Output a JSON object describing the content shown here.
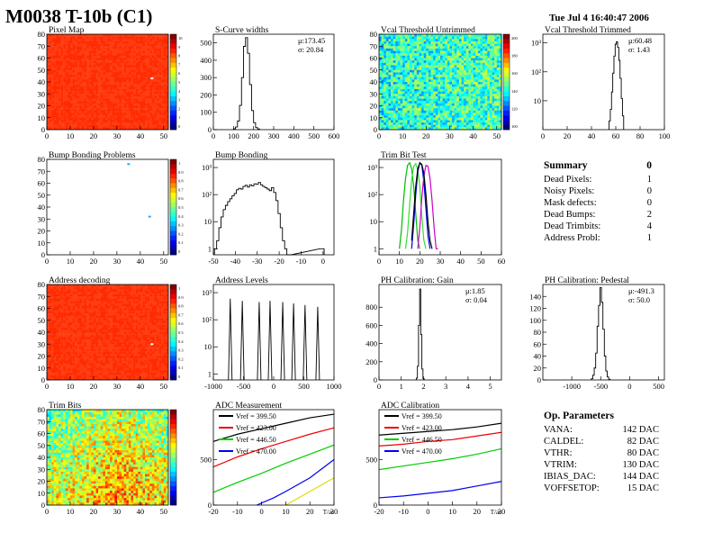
{
  "header": {
    "title": "M0038 T-10b (C1)",
    "date": "Tue Jul  4 16:40:47 2006"
  },
  "colors": {
    "dead": "#ff2200",
    "hist_line": "#000000"
  },
  "chart_data": [
    {
      "id": "pixel_map",
      "type": "heatmap",
      "title": "Pixel Map",
      "xlim": [
        0,
        52
      ],
      "ylim": [
        0,
        80
      ],
      "xticks": [
        0,
        10,
        20,
        30,
        40,
        50
      ],
      "yticks": [
        0,
        10,
        20,
        30,
        40,
        50,
        60,
        70,
        80
      ],
      "fill": "uniform_high",
      "anomalies": [
        {
          "x": 45,
          "y": 43
        }
      ],
      "palette_labels": [
        "10",
        "9",
        "8",
        "7",
        "6",
        "5",
        "4",
        "3",
        "2",
        "1",
        "0"
      ]
    },
    {
      "id": "scurve_widths",
      "type": "histogram",
      "title": "S-Curve widths",
      "xlim": [
        0,
        600
      ],
      "ylim": [
        0,
        550
      ],
      "xticks": [
        0,
        100,
        200,
        300,
        400,
        500,
        600
      ],
      "yticks": [
        0,
        100,
        200,
        300,
        400,
        500
      ],
      "stats": [
        "μ:173.45",
        "σ: 20.84"
      ],
      "x": [
        105,
        115,
        125,
        135,
        145,
        155,
        165,
        175,
        185,
        195,
        205,
        215,
        225
      ],
      "values": [
        5,
        15,
        50,
        140,
        300,
        480,
        530,
        440,
        260,
        110,
        40,
        12,
        4
      ]
    },
    {
      "id": "vcal_untrimmed",
      "type": "heatmap",
      "title": "Vcal Threshold Untrimmed",
      "xlim": [
        0,
        52
      ],
      "ylim": [
        0,
        80
      ],
      "xticks": [
        0,
        10,
        20,
        30,
        40,
        50
      ],
      "yticks": [
        0,
        10,
        20,
        30,
        40,
        50,
        60,
        70,
        80
      ],
      "fill": "noisy_mid",
      "palette_labels": [
        "200",
        "180",
        "160",
        "140",
        "120",
        "100"
      ]
    },
    {
      "id": "vcal_trimmed",
      "type": "histogram",
      "title": "Vcal Threshold Trimmed",
      "log": true,
      "xlim": [
        0,
        100
      ],
      "ylim": [
        1,
        2000
      ],
      "xticks": [
        0,
        20,
        40,
        60,
        80,
        100
      ],
      "ytick_labels": [
        {
          "v": 10,
          "t": "10"
        },
        {
          "v": 100,
          "t": "10²"
        },
        {
          "v": 1000,
          "t": "10³"
        }
      ],
      "stats": [
        "μ:60.48",
        "σ: 1.43"
      ],
      "x": [
        55,
        56,
        57,
        58,
        59,
        60,
        61,
        62,
        63,
        64,
        65,
        66
      ],
      "values": [
        2,
        5,
        20,
        90,
        350,
        900,
        1100,
        700,
        250,
        60,
        12,
        3
      ]
    },
    {
      "id": "bump_problems",
      "type": "heatmap",
      "title": "Bump Bonding Problems",
      "xlim": [
        0,
        52
      ],
      "ylim": [
        0,
        80
      ],
      "xticks": [
        0,
        10,
        20,
        30,
        40,
        50
      ],
      "yticks": [
        0,
        10,
        20,
        30,
        40,
        50,
        60,
        70,
        80
      ],
      "fill": "empty",
      "anomalies": [
        {
          "x": 35,
          "y": 76
        },
        {
          "x": 44,
          "y": 32
        }
      ],
      "palette_labels": [
        "1",
        "0.9",
        "0.8",
        "0.7",
        "0.6",
        "0.5",
        "0.4",
        "0.3",
        "0.2",
        "0.1",
        "0"
      ]
    },
    {
      "id": "bump_bonding",
      "type": "histogram",
      "title": "Bump Bonding",
      "log": true,
      "xlim": [
        -50,
        5
      ],
      "ylim": [
        0.6,
        2000
      ],
      "xticks": [
        -50,
        -40,
        -30,
        -20,
        -10,
        0
      ],
      "ytick_labels": [
        {
          "v": 1,
          "t": "1"
        },
        {
          "v": 10,
          "t": "10"
        },
        {
          "v": 100,
          "t": "10²"
        },
        {
          "v": 1000,
          "t": "10³"
        }
      ],
      "x": [
        -49,
        -48,
        -47,
        -46,
        -45,
        -44,
        -43,
        -42,
        -41,
        -40,
        -39,
        -38,
        -37,
        -36,
        -35,
        -34,
        -33,
        -32,
        -31,
        -30,
        -29,
        -28,
        -27,
        -26,
        -25,
        -24,
        -23,
        -22,
        -21,
        -20,
        -19,
        -18,
        -17,
        -16,
        -15,
        -1,
        0
      ],
      "values": [
        1,
        2,
        6,
        15,
        28,
        40,
        55,
        70,
        90,
        110,
        150,
        170,
        160,
        200,
        220,
        190,
        230,
        210,
        250,
        240,
        280,
        230,
        200,
        180,
        160,
        140,
        180,
        120,
        60,
        20,
        6,
        2,
        1,
        0,
        0,
        1,
        1
      ]
    },
    {
      "id": "trim_bit_test",
      "type": "line",
      "title": "Trim Bit Test",
      "log": true,
      "xlim": [
        0,
        60
      ],
      "ylim": [
        0.6,
        2000
      ],
      "xticks": [
        0,
        10,
        20,
        30,
        40,
        50,
        60
      ],
      "ytick_labels": [
        {
          "v": 1,
          "t": "1"
        },
        {
          "v": 10,
          "t": "10"
        },
        {
          "v": 100,
          "t": "10²"
        },
        {
          "v": 1000,
          "t": "10³"
        }
      ],
      "series": [
        {
          "color": "#00bb00",
          "x": [
            10,
            11,
            12,
            13,
            14,
            15,
            16,
            17,
            18,
            19,
            20
          ],
          "values": [
            1,
            5,
            60,
            400,
            1200,
            1500,
            900,
            200,
            20,
            2,
            1
          ]
        },
        {
          "color": "#33dd33",
          "x": [
            13,
            14,
            15,
            16,
            17,
            18,
            19,
            20,
            21,
            22,
            23
          ],
          "values": [
            1,
            4,
            40,
            350,
            1100,
            1400,
            800,
            200,
            15,
            2,
            1
          ]
        },
        {
          "color": "#0000dd",
          "x": [
            16,
            17,
            18,
            19,
            20,
            21,
            22,
            23,
            24,
            25
          ],
          "values": [
            1,
            8,
            100,
            700,
            1500,
            1200,
            300,
            30,
            3,
            1
          ]
        },
        {
          "color": "#cc00cc",
          "x": [
            19,
            20,
            21,
            22,
            23,
            24,
            25,
            26,
            27,
            28,
            29
          ],
          "values": [
            1,
            6,
            80,
            500,
            1200,
            1100,
            400,
            60,
            6,
            1,
            1
          ]
        },
        {
          "color": "#000000",
          "x": [
            16,
            17,
            18,
            19,
            20,
            21,
            22,
            23,
            24,
            25,
            26
          ],
          "values": [
            2,
            20,
            200,
            900,
            1500,
            1300,
            600,
            100,
            10,
            2,
            1
          ]
        }
      ]
    },
    {
      "id": "address_decoding",
      "type": "heatmap",
      "title": "Address decoding",
      "xlim": [
        0,
        52
      ],
      "ylim": [
        0,
        80
      ],
      "xticks": [
        0,
        10,
        20,
        30,
        40,
        50
      ],
      "yticks": [
        0,
        10,
        20,
        30,
        40,
        50,
        60,
        70,
        80
      ],
      "fill": "uniform_high",
      "anomalies": [
        {
          "x": 45,
          "y": 30
        }
      ],
      "palette_labels": [
        "1",
        "0.9",
        "0.8",
        "0.7",
        "0.6",
        "0.5",
        "0.4",
        "0.3",
        "0.2",
        "0.1",
        "0"
      ]
    },
    {
      "id": "address_levels",
      "type": "histogram",
      "title": "Address Levels",
      "log": true,
      "xlim": [
        -1000,
        1000
      ],
      "ylim": [
        0.6,
        2000
      ],
      "xticks": [
        -1000,
        -500,
        0,
        500,
        1000
      ],
      "ytick_labels": [
        {
          "v": 1,
          "t": "1"
        },
        {
          "v": 10,
          "t": "10"
        },
        {
          "v": 100,
          "t": "10²"
        },
        {
          "v": 1000,
          "t": "10³"
        }
      ],
      "peaks": [
        {
          "x": -720,
          "h": 600
        },
        {
          "x": -520,
          "h": 500
        },
        {
          "x": -240,
          "h": 450
        },
        {
          "x": -60,
          "h": 500
        },
        {
          "x": 150,
          "h": 450
        },
        {
          "x": 330,
          "h": 400
        },
        {
          "x": 520,
          "h": 350
        },
        {
          "x": 730,
          "h": 300
        }
      ]
    },
    {
      "id": "ph_gain",
      "type": "histogram",
      "title": "PH Calibration: Gain",
      "xlim": [
        0,
        5.5
      ],
      "ylim": [
        0,
        1050
      ],
      "xticks": [
        0,
        1,
        2,
        3,
        4,
        5
      ],
      "yticks": [
        0,
        200,
        400,
        600,
        800
      ],
      "stats": [
        "μ:1.85",
        "σ: 0.04"
      ],
      "x": [
        1.7,
        1.75,
        1.8,
        1.85,
        1.9,
        1.95,
        2.0
      ],
      "values": [
        20,
        150,
        600,
        1000,
        500,
        120,
        15
      ]
    },
    {
      "id": "ph_pedestal",
      "type": "histogram",
      "title": "PH Calibration: Pedestal",
      "xlim": [
        -1500,
        600
      ],
      "ylim": [
        0,
        160
      ],
      "xticks": [
        -1000,
        -500,
        0,
        500
      ],
      "yticks": [
        0,
        20,
        40,
        60,
        80,
        100,
        120,
        140
      ],
      "stats": [
        "μ:-491.3",
        "σ: 50.0"
      ],
      "x": [
        -650,
        -625,
        -600,
        -575,
        -550,
        -525,
        -500,
        -475,
        -450,
        -425,
        -400,
        -375,
        -350
      ],
      "values": [
        2,
        8,
        20,
        45,
        90,
        125,
        155,
        130,
        85,
        40,
        15,
        5,
        1
      ]
    },
    {
      "id": "trim_bits",
      "type": "heatmap",
      "title": "Trim Bits",
      "xlim": [
        0,
        52
      ],
      "ylim": [
        0,
        80
      ],
      "xticks": [
        0,
        10,
        20,
        30,
        40,
        50
      ],
      "yticks": [
        0,
        10,
        20,
        30,
        40,
        50,
        60,
        70,
        80
      ],
      "fill": "noisy_high",
      "palette_labels": []
    },
    {
      "id": "adc_measurement",
      "type": "line",
      "title": "ADC Measurement",
      "xlim": [
        -20,
        30
      ],
      "ylim": [
        0,
        1050
      ],
      "xticks": [
        -20,
        -10,
        0,
        10,
        20,
        30
      ],
      "yticks": [
        0,
        500
      ],
      "xlabel": "T/ac",
      "series": [
        {
          "name": "Vref = 399.50",
          "color": "#000000",
          "x": [
            -20,
            -10,
            0,
            10,
            20,
            30
          ],
          "values": [
            700,
            780,
            840,
            900,
            960,
            1000
          ]
        },
        {
          "name": "Vref = 423.00",
          "color": "#ee0000",
          "x": [
            -20,
            -10,
            0,
            10,
            20,
            30
          ],
          "values": [
            420,
            530,
            620,
            700,
            780,
            850
          ]
        },
        {
          "name": "Vref = 446.50",
          "color": "#00cc00",
          "x": [
            -20,
            -10,
            0,
            10,
            20,
            30
          ],
          "values": [
            140,
            250,
            350,
            460,
            560,
            660
          ]
        },
        {
          "name": "Vref = 470.00",
          "color": "#0000ee",
          "x": [
            -2,
            5,
            10,
            20,
            30
          ],
          "values": [
            0,
            80,
            150,
            300,
            500
          ]
        },
        {
          "name": "",
          "color": "#dddd00",
          "x": [
            10,
            20,
            30
          ],
          "values": [
            0,
            150,
            300
          ]
        }
      ]
    },
    {
      "id": "adc_calibration",
      "type": "line",
      "title": "ADC Calibration",
      "xlim": [
        -20,
        30
      ],
      "ylim": [
        0,
        1050
      ],
      "xticks": [
        -20,
        -10,
        0,
        10,
        20,
        30
      ],
      "yticks": [
        0,
        500
      ],
      "xlabel": "T/ac",
      "series": [
        {
          "name": "Vref = 399.50",
          "color": "#000000",
          "x": [
            -20,
            -10,
            0,
            10,
            20,
            30
          ],
          "values": [
            770,
            790,
            810,
            830,
            860,
            900
          ]
        },
        {
          "name": "Vref = 423.00",
          "color": "#ee0000",
          "x": [
            -20,
            -10,
            0,
            10,
            20,
            30
          ],
          "values": [
            650,
            670,
            700,
            720,
            760,
            800
          ]
        },
        {
          "name": "Vref = 446.50",
          "color": "#00cc00",
          "x": [
            -20,
            -10,
            0,
            10,
            20,
            30
          ],
          "values": [
            390,
            430,
            470,
            510,
            560,
            620
          ]
        },
        {
          "name": "Vref = 470.00",
          "color": "#0000ee",
          "x": [
            -20,
            -10,
            0,
            10,
            20,
            30
          ],
          "values": [
            80,
            100,
            130,
            160,
            210,
            260
          ]
        }
      ]
    }
  ],
  "summary": {
    "title": "Summary",
    "total": "0",
    "rows": [
      {
        "label": "Dead Pixels:",
        "value": "1"
      },
      {
        "label": "Noisy Pixels:",
        "value": "0"
      },
      {
        "label": "Mask defects:",
        "value": "0"
      },
      {
        "label": "Dead Bumps:",
        "value": "2"
      },
      {
        "label": "Dead Trimbits:",
        "value": "4"
      },
      {
        "label": "Address Probl:",
        "value": "1"
      }
    ]
  },
  "op_parameters": {
    "title": "Op. Parameters",
    "rows": [
      {
        "label": "VANA:",
        "value": "142 DAC"
      },
      {
        "label": "CALDEL:",
        "value": "82 DAC"
      },
      {
        "label": "VTHR:",
        "value": "80 DAC"
      },
      {
        "label": "VTRIM:",
        "value": "130 DAC"
      },
      {
        "label": "IBIAS_DAC:",
        "value": "144 DAC"
      },
      {
        "label": "VOFFSETOP:",
        "value": "15 DAC"
      }
    ]
  }
}
